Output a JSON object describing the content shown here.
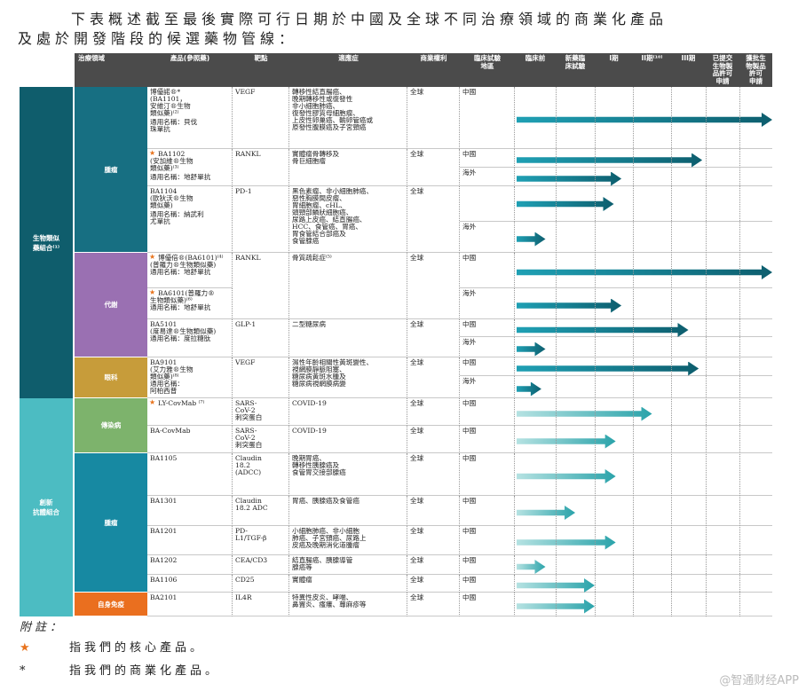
{
  "intro": {
    "line1": "下表概述截至最後實際可行日期於中國及全球不同治療領域的商業化產品",
    "line2": "及處於開發階段的候選藥物管線："
  },
  "headers": [
    "治療領域",
    "產品(參照藥)",
    "靶點",
    "適應症",
    "商業權利",
    "臨床試驗\n地區",
    "臨床前",
    "新藥臨\n床試驗",
    "I期",
    "II期⁽¹⁰⁾",
    "III期",
    "已提交\n生物製\n品許可\n申請",
    "獲批生\n物製品\n許可\n申請"
  ],
  "groups": [
    {
      "label": "生物類似\n藥組合⁽¹⁾",
      "color": "#0f5d6c"
    },
    {
      "label": "創新\n抗體組合",
      "color": "#4cbcc2"
    }
  ],
  "areas": [
    {
      "label": "腫瘤",
      "color": "#176f82"
    },
    {
      "label": "代謝",
      "color": "#9a70b2"
    },
    {
      "label": "眼科",
      "color": "#c79c3a"
    },
    {
      "label": "傳染病",
      "color": "#7db36c"
    },
    {
      "label": "腫瘤",
      "color": "#1789a2"
    },
    {
      "label": "自身免疫",
      "color": "#ea6f1f"
    }
  ],
  "arrow_colors": {
    "biosimilar": [
      "#1fa0b4",
      "#0d5e6e"
    ],
    "innovative": [
      "#b5e2e2",
      "#2aa3aa"
    ]
  },
  "stages": [
    "臨床前",
    "新藥臨床試驗",
    "I期",
    "II期",
    "III期",
    "已提交生物製品許可申請",
    "獲批生物製品許可申請"
  ],
  "products": [
    {
      "name": "博優諾®*\n(BA1101，\n安維汀®生物\n類似藥)⁽²⁾\n\n通用名稱：貝伐\n珠單抗",
      "core": false,
      "target": "VEGF",
      "indication": "轉移性結直腸癌、\n晚期轉移性或復發性\n非小細胞肺癌、\n復發性膠質母細胞瘤、\n上皮性卵巢癌、輸卵管癌或\n原發性腹膜癌及子宮頸癌",
      "rights": "全球",
      "trials": [
        {
          "region": "中國",
          "progress": 7.0
        }
      ]
    },
    {
      "name": "BA1102\n(安加維®生物\n類似藥)⁽³⁾\n\n通用名稱：地舒單抗",
      "core": true,
      "target": "RANKL",
      "indication": "實體瘤骨轉移及\n骨巨細胞瘤",
      "rights": "全球",
      "trials": [
        {
          "region": "中國",
          "progress": 4.9
        },
        {
          "region": "海外",
          "progress": 2.7
        }
      ]
    },
    {
      "name": "BA1104\n(歐狄沃®生物\n類似藥)\n\n通用名稱：納武利\n尤單抗",
      "core": false,
      "target": "PD-1",
      "indication": "黑色素瘤、非小細胞肺癌、\n惡性胸膜間皮瘤、\n胃細胞瘤、cHL、\n頭頸部鱗狀細胞癌、\n尿路上皮癌、結直腸癌、\nHCC、食管癌、胃癌、\n胃食管結合部癌及\n食管腺癌",
      "rights": "全球",
      "trials": [
        {
          "region": "",
          "progress": 2.5
        },
        {
          "region": "海外",
          "progress": 0.75
        }
      ]
    },
    {
      "name": "博優倍®(BA6101)⁽⁴⁾\n(普羅力®生物類似藥)\n通用名稱：地舒單抗",
      "core": true,
      "target": "RANKL",
      "indication": "骨質疏鬆症⁽⁵⁾",
      "rights": "全球",
      "trials": [
        {
          "region": "中國",
          "progress": 7.0
        }
      ]
    },
    {
      "name": "BA6101(普羅力®\n生物類似藥)⁽⁶⁾\n通用名稱：地舒單抗",
      "core": true,
      "target": "",
      "indication": "",
      "rights": "",
      "trials": [
        {
          "region": "海外",
          "progress": 2.7
        }
      ]
    },
    {
      "name": "BA5101\n(度易達®生物類似藥)\n通用名稱：度拉糖肽",
      "core": false,
      "target": "GLP-1",
      "indication": "二型糖尿病",
      "rights": "全球",
      "trials": [
        {
          "region": "中國",
          "progress": 4.5
        },
        {
          "region": "海外",
          "progress": 0.75
        }
      ]
    },
    {
      "name": "BA9101\n(艾力雅®生物\n類似藥)⁽⁸⁾\n通用名稱：\n阿柏西普",
      "core": false,
      "target": "VEGF",
      "indication": "濕性年齡相關性黃斑變性、\n視網膜靜脈阻塞、\n糖尿病黃斑水腫及\n糖尿病視網膜病變",
      "rights": "全球",
      "trials": [
        {
          "region": "中國",
          "progress": 4.8
        },
        {
          "region": "海外",
          "progress": 0.65
        }
      ]
    },
    {
      "name": "LY-CovMab ⁽⁷⁾",
      "core": true,
      "target": "SARS-\nCoV-2\n刺突蛋白",
      "indication": "COVID-19",
      "rights": "全球",
      "trials": [
        {
          "region": "中國",
          "progress": 3.5
        }
      ]
    },
    {
      "name": "BA-CovMab",
      "core": false,
      "target": "SARS-\nCoV-2\n刺突蛋白",
      "indication": "COVID-19",
      "rights": "全球",
      "trials": [
        {
          "region": "中國",
          "progress": 2.55
        }
      ]
    },
    {
      "name": "BA1105",
      "core": false,
      "target": "Claudin\n18.2\n(ADCC)",
      "indication": "晚期胃癌、\n轉移性胰腺癌及\n食管胃交接部腺癌",
      "rights": "全球",
      "trials": [
        {
          "region": "中國",
          "progress": 2.55
        }
      ]
    },
    {
      "name": "BA1301",
      "core": false,
      "target": "Claudin\n18.2 ADC",
      "indication": "胃癌、胰腺癌及食管癌",
      "rights": "全球",
      "trials": [
        {
          "region": "中國",
          "progress": 1.5
        }
      ]
    },
    {
      "name": "BA1201",
      "core": false,
      "target": "PD-\nL1/TGF-β",
      "indication": "小細胞肺癌、非小細胞\n肺癌、子宮頸癌、尿路上\n皮癌及晚期消化道腫瘤",
      "rights": "全球",
      "trials": [
        {
          "region": "中國",
          "progress": 2.55
        }
      ]
    },
    {
      "name": "BA1202",
      "core": false,
      "target": "CEA/CD3",
      "indication": "結直腸癌、胰腺導管\n腺癌等",
      "rights": "全球",
      "trials": [
        {
          "region": "中國",
          "progress": 0.75
        }
      ]
    },
    {
      "name": "BA1106",
      "core": false,
      "target": "CD25",
      "indication": "實體瘤",
      "rights": "全球",
      "trials": [
        {
          "region": "中國",
          "progress": 2.0
        }
      ]
    },
    {
      "name": "BA2101",
      "core": false,
      "target": "IL4R",
      "indication": "特異性皮炎、哮喘、\n鼻竇炎、瘙癢、蕁麻疹等",
      "rights": "全球",
      "trials": [
        {
          "region": "中國",
          "progress": 2.0
        }
      ]
    }
  ],
  "notes": {
    "title": "附註：",
    "star_icon": "star-icon",
    "star_text": "指我們的核心產品。",
    "asterisk": "*",
    "asterisk_text": "指我們的商業化產品。"
  },
  "watermark": "@智通财经APP"
}
